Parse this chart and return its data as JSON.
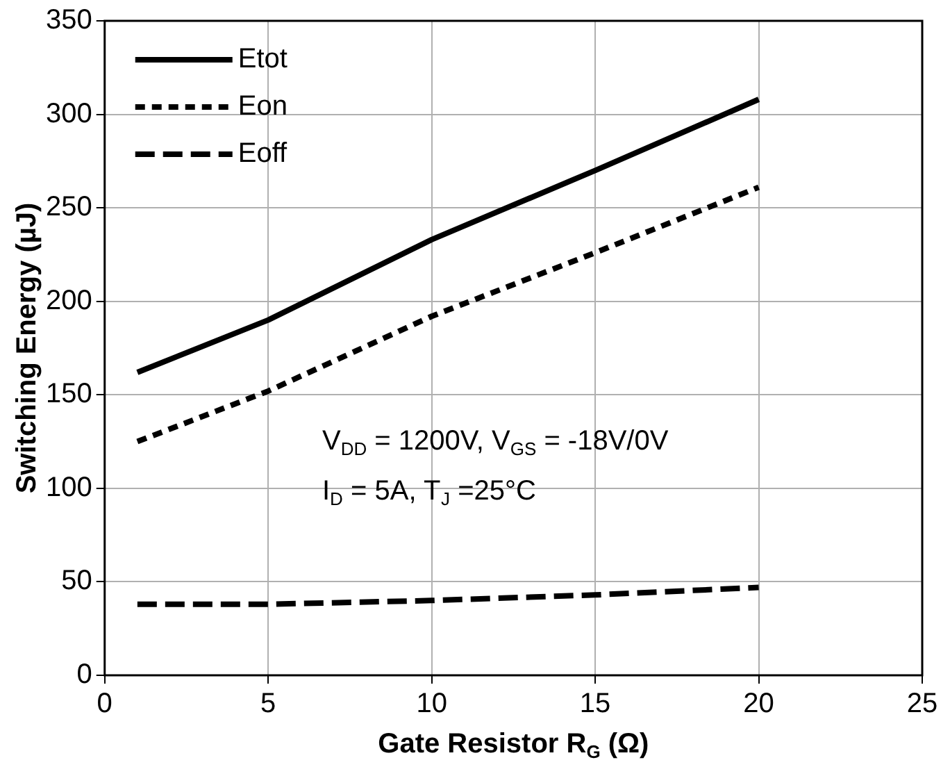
{
  "chart_data": {
    "type": "line",
    "xlabel": "Gate Resistor R$_{G}$ (Ω)",
    "ylabel": "Switching Energy (µJ)",
    "x": [
      1,
      5,
      10,
      15,
      20
    ],
    "series": [
      {
        "name": "Etot",
        "color": "#000000",
        "line_style": "solid",
        "values": [
          162,
          190,
          233,
          270,
          308
        ]
      },
      {
        "name": "Eon",
        "color": "#000000",
        "line_style": "dotted",
        "values": [
          125,
          152,
          192,
          226,
          261
        ]
      },
      {
        "name": "Eoff",
        "color": "#000000",
        "line_style": "dashed",
        "values": [
          38,
          38,
          40,
          43,
          47
        ]
      }
    ],
    "xlim": [
      0,
      25
    ],
    "xticks": [
      0,
      5,
      10,
      15,
      20,
      25
    ],
    "ylim": [
      0,
      350
    ],
    "yticks": [
      0,
      50,
      100,
      150,
      200,
      250,
      300,
      350
    ],
    "grid": true,
    "legend": "top left",
    "marker": "none",
    "annotations": [
      "V$_{DD}$ = 1200V, V$_{GS}$ = -18V/0V",
      "I$_{D}$ = 5A, T$_{J}$ =25°C"
    ]
  }
}
